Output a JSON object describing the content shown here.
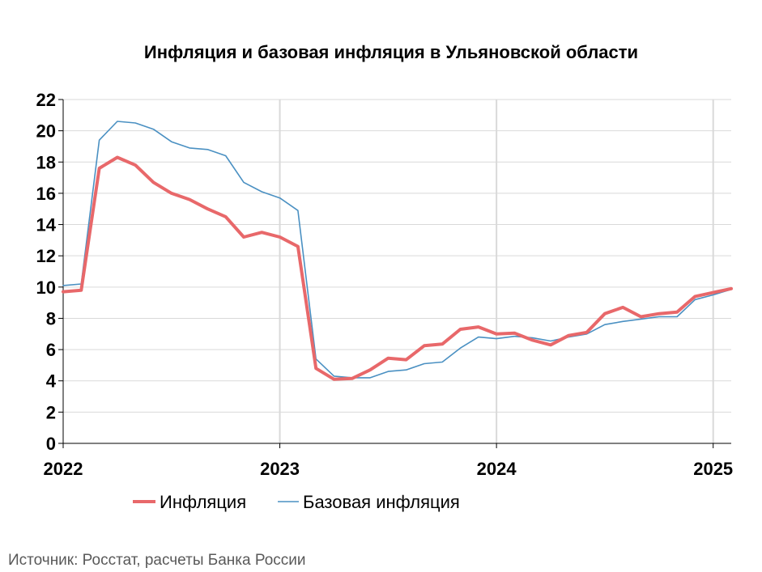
{
  "chart_data": {
    "type": "line",
    "title": "Инфляция и базовая инфляция в Ульяновской области",
    "xlabel": "",
    "ylabel": "",
    "ylim": [
      0,
      22
    ],
    "yticks": [
      "0",
      "2",
      "4",
      "6",
      "8",
      "10",
      "12",
      "14",
      "16",
      "18",
      "20",
      "22"
    ],
    "xticks": [
      "2022",
      "2023",
      "2024",
      "2025"
    ],
    "x_range": [
      "2022-01",
      "2025-02"
    ],
    "grid": true,
    "legend_position": "bottom",
    "x": [
      "2022-01",
      "2022-02",
      "2022-03",
      "2022-04",
      "2022-05",
      "2022-06",
      "2022-07",
      "2022-08",
      "2022-09",
      "2022-10",
      "2022-11",
      "2022-12",
      "2023-01",
      "2023-02",
      "2023-03",
      "2023-04",
      "2023-05",
      "2023-06",
      "2023-07",
      "2023-08",
      "2023-09",
      "2023-10",
      "2023-11",
      "2023-12",
      "2024-01",
      "2024-02",
      "2024-03",
      "2024-04",
      "2024-05",
      "2024-06",
      "2024-07",
      "2024-08",
      "2024-09",
      "2024-10",
      "2024-11",
      "2024-12",
      "2025-01",
      "2025-02"
    ],
    "series": [
      {
        "name": "Инфляция",
        "color": "#E8686A",
        "values": [
          9.7,
          9.8,
          17.6,
          18.3,
          17.8,
          16.7,
          16.0,
          15.6,
          15.0,
          14.5,
          13.2,
          13.5,
          13.2,
          12.6,
          4.8,
          4.1,
          4.15,
          4.7,
          5.45,
          5.35,
          6.25,
          6.35,
          7.3,
          7.45,
          7.0,
          7.05,
          6.6,
          6.3,
          6.9,
          7.1,
          8.3,
          8.7,
          8.1,
          8.3,
          8.4,
          9.4,
          9.65,
          9.9
        ]
      },
      {
        "name": "Базовая инфляция",
        "color": "#4A90C2",
        "values": [
          10.1,
          10.2,
          19.4,
          20.6,
          20.5,
          20.1,
          19.3,
          18.9,
          18.8,
          18.4,
          16.7,
          16.1,
          15.7,
          14.9,
          5.4,
          4.3,
          4.2,
          4.2,
          4.6,
          4.7,
          5.1,
          5.2,
          6.1,
          6.8,
          6.7,
          6.85,
          6.75,
          6.55,
          6.8,
          7.0,
          7.6,
          7.8,
          7.95,
          8.1,
          8.1,
          9.2,
          9.5,
          9.85
        ]
      }
    ],
    "source": "Источник: Росстат, расчеты Банка России"
  }
}
